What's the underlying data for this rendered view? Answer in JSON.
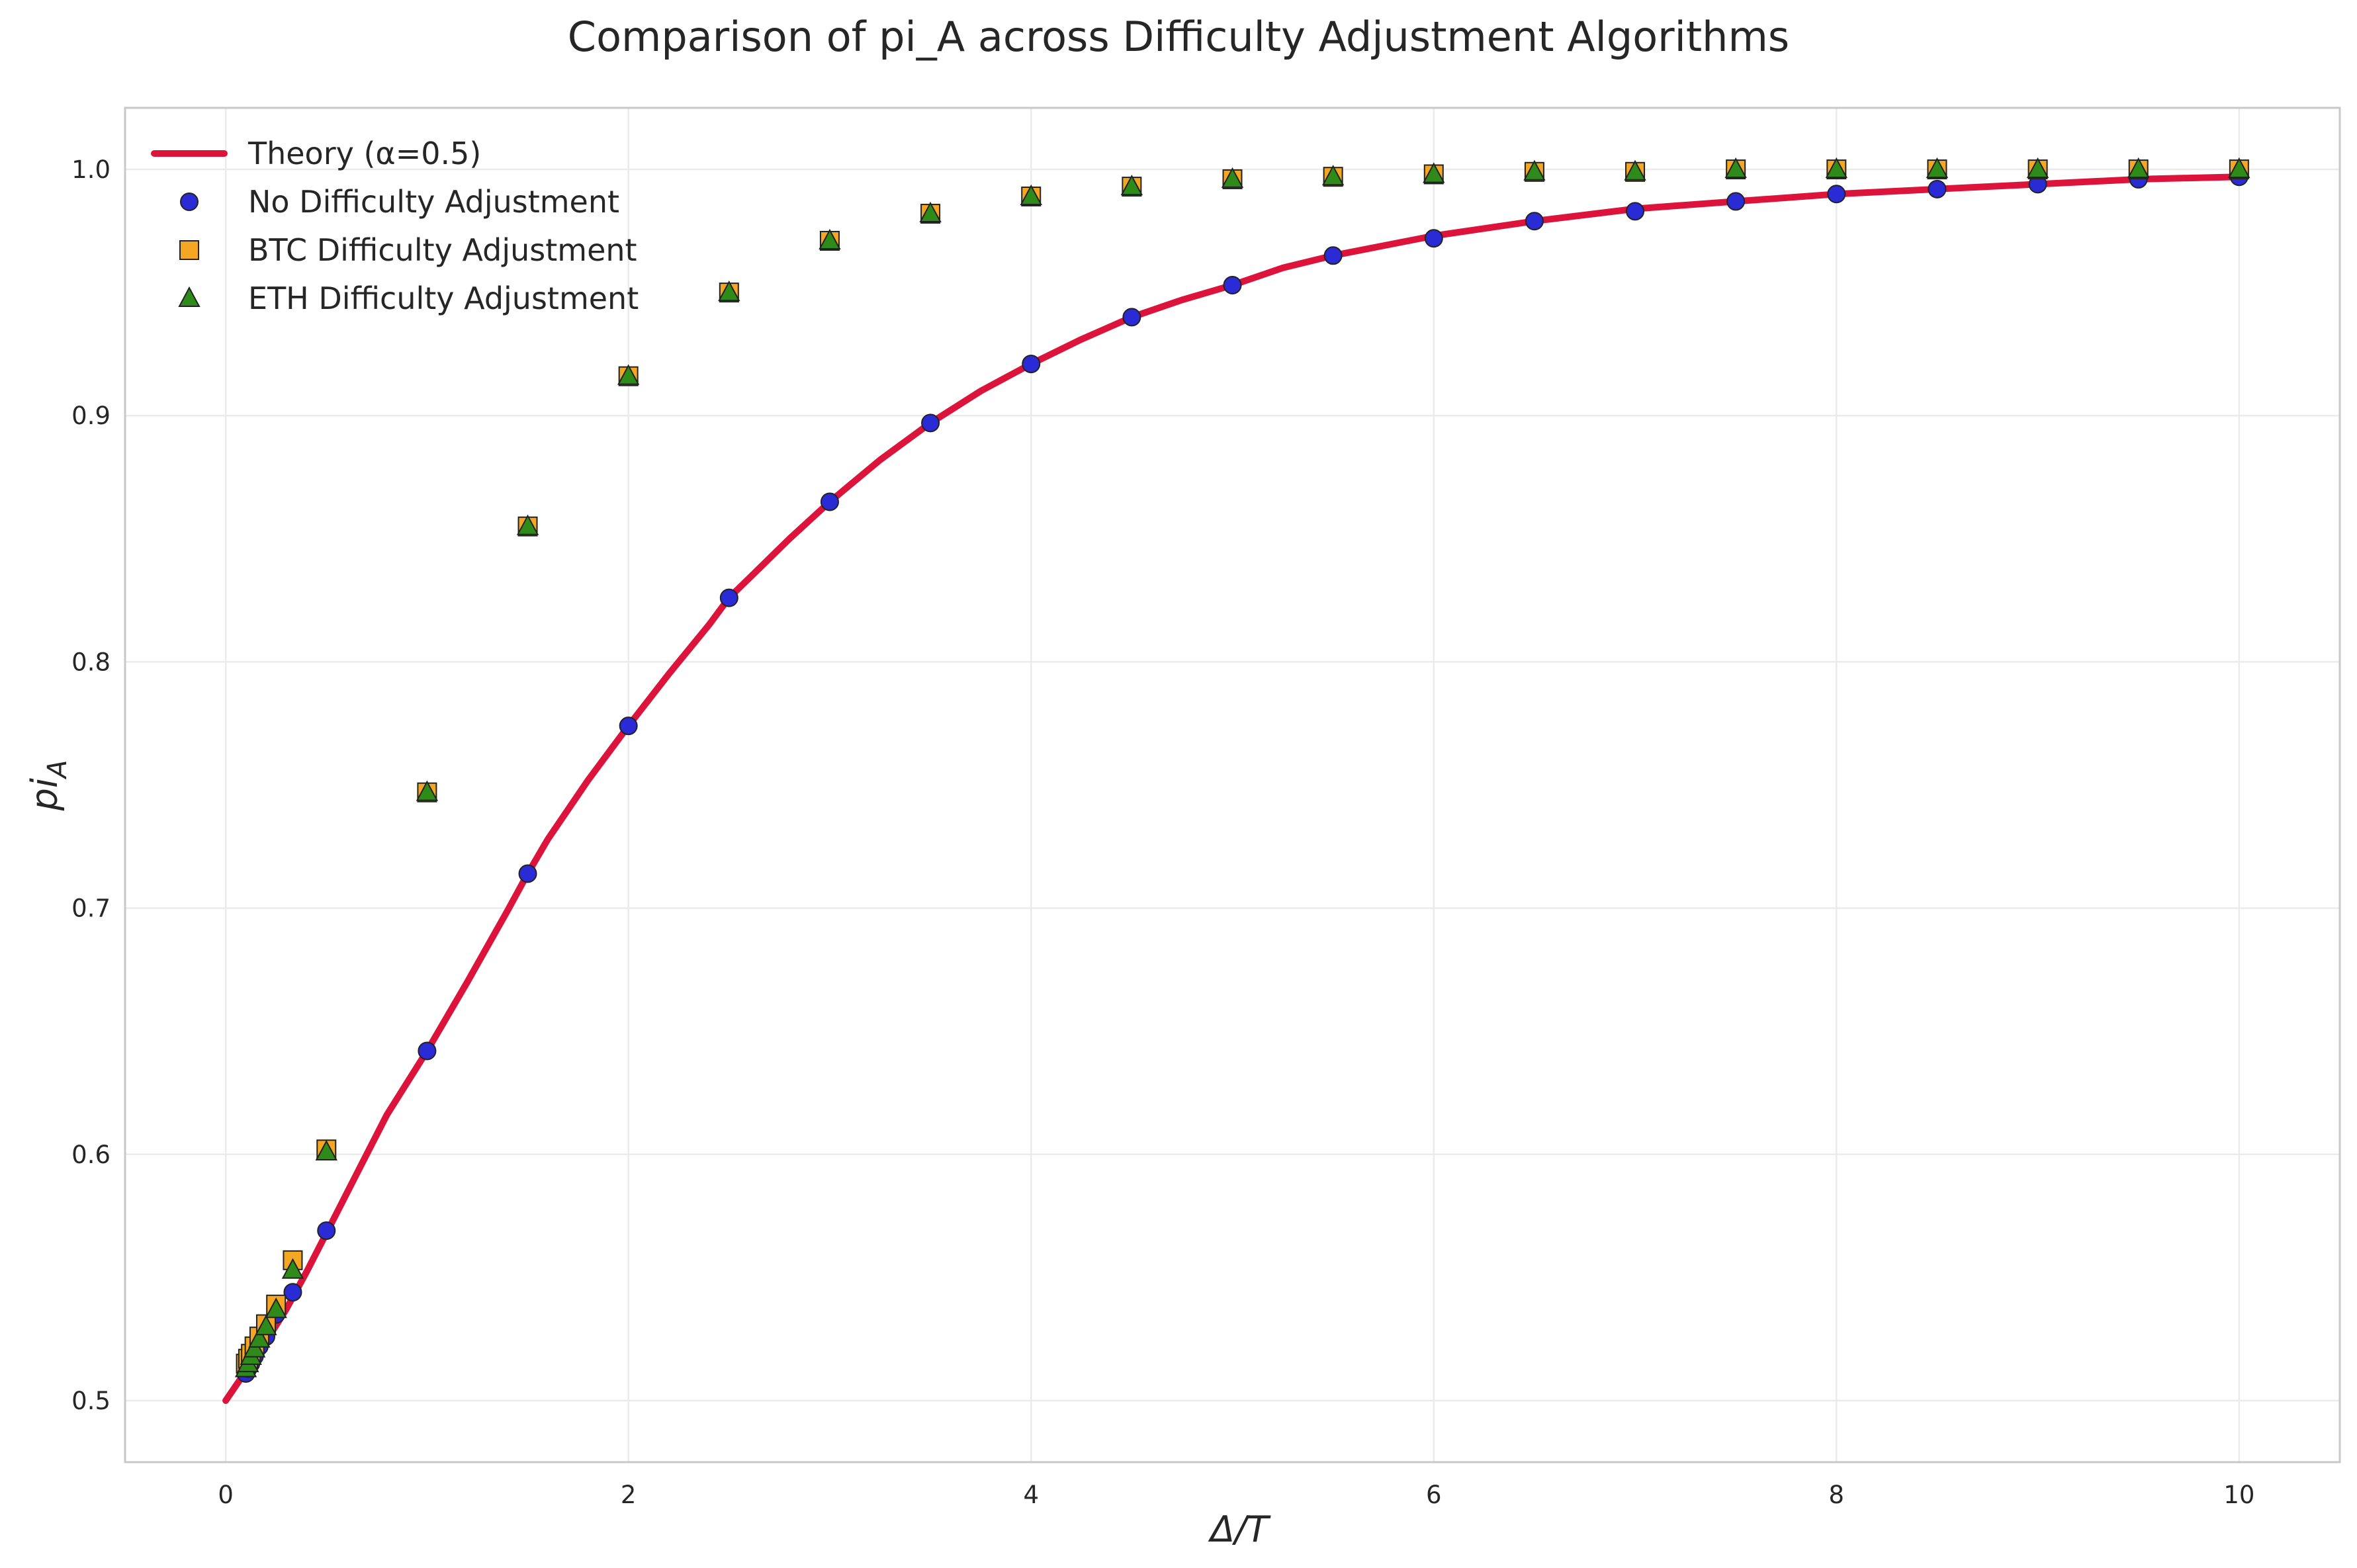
{
  "chart_data": {
    "type": "scatter",
    "title": "Comparison of pi_A across Difficulty Adjustment Algorithms",
    "xlabel": "Δ/T",
    "ylabel": "pi",
    "ylabel_sub": "A",
    "xlim": [
      -0.5,
      10.5
    ],
    "ylim": [
      0.475,
      1.025
    ],
    "xticks": [
      0,
      2,
      4,
      6,
      8,
      10
    ],
    "yticks": [
      0.5,
      0.6,
      0.7,
      0.8,
      0.9,
      1.0
    ],
    "xtick_labels": [
      "0",
      "2",
      "4",
      "6",
      "8",
      "10"
    ],
    "ytick_labels": [
      "0.5",
      "0.6",
      "0.7",
      "0.8",
      "0.9",
      "1.0"
    ],
    "grid": true,
    "legend_position": "top-left",
    "theory": {
      "name": "Theory (α=0.5)",
      "color": "#dc143c",
      "x": [
        0,
        0.1,
        0.2,
        0.3,
        0.4,
        0.5,
        0.6,
        0.7,
        0.8,
        0.9,
        1.0,
        1.2,
        1.4,
        1.5,
        1.6,
        1.8,
        2.0,
        2.2,
        2.4,
        2.5,
        2.6,
        2.8,
        3.0,
        3.25,
        3.5,
        3.75,
        4.0,
        4.25,
        4.5,
        4.75,
        5.0,
        5.25,
        5.5,
        5.75,
        6.0,
        6.5,
        7.0,
        7.5,
        8.0,
        8.5,
        9.0,
        9.5,
        10.0
      ],
      "y": [
        0.5,
        0.512,
        0.524,
        0.537,
        0.552,
        0.568,
        0.584,
        0.6,
        0.616,
        0.629,
        0.642,
        0.67,
        0.699,
        0.714,
        0.728,
        0.752,
        0.774,
        0.795,
        0.815,
        0.826,
        0.834,
        0.85,
        0.865,
        0.882,
        0.897,
        0.91,
        0.921,
        0.931,
        0.94,
        0.947,
        0.953,
        0.96,
        0.965,
        0.969,
        0.973,
        0.979,
        0.984,
        0.987,
        0.99,
        0.992,
        0.994,
        0.996,
        0.997
      ]
    },
    "series": [
      {
        "name": "No Difficulty Adjustment",
        "marker": "circle",
        "color": "#2b2bd6",
        "x": [
          0.1,
          0.111,
          0.125,
          0.143,
          0.167,
          0.2,
          0.25,
          0.333,
          0.5,
          1.0,
          1.5,
          2.0,
          2.5,
          3.0,
          3.5,
          4.0,
          4.5,
          5.0,
          5.5,
          6.0,
          6.5,
          7.0,
          7.5,
          8.0,
          8.5,
          9.0,
          9.5,
          10.0
        ],
        "y": [
          0.511,
          0.513,
          0.515,
          0.518,
          0.522,
          0.526,
          0.535,
          0.544,
          0.569,
          0.642,
          0.714,
          0.774,
          0.826,
          0.865,
          0.897,
          0.921,
          0.94,
          0.953,
          0.965,
          0.972,
          0.979,
          0.983,
          0.987,
          0.99,
          0.992,
          0.994,
          0.996,
          0.997
        ]
      },
      {
        "name": "BTC Difficulty Adjustment",
        "marker": "square",
        "color": "#f5a623",
        "x": [
          0.1,
          0.111,
          0.125,
          0.143,
          0.167,
          0.2,
          0.25,
          0.333,
          0.5,
          1.0,
          1.5,
          2.0,
          2.5,
          3.0,
          3.5,
          4.0,
          4.5,
          5.0,
          5.5,
          6.0,
          6.5,
          7.0,
          7.5,
          8.0,
          8.5,
          9.0,
          9.5,
          10.0
        ],
        "y": [
          0.515,
          0.517,
          0.519,
          0.522,
          0.526,
          0.531,
          0.539,
          0.557,
          0.602,
          0.747,
          0.855,
          0.916,
          0.95,
          0.971,
          0.982,
          0.989,
          0.993,
          0.996,
          0.997,
          0.998,
          0.999,
          0.999,
          1.0,
          1.0,
          1.0,
          1.0,
          1.0,
          1.0
        ]
      },
      {
        "name": "ETH Difficulty Adjustment",
        "marker": "triangle",
        "color": "#2e8b1a",
        "x": [
          0.1,
          0.111,
          0.125,
          0.143,
          0.167,
          0.2,
          0.25,
          0.333,
          0.5,
          1.0,
          1.5,
          2.0,
          2.5,
          3.0,
          3.5,
          4.0,
          4.5,
          5.0,
          5.5,
          6.0,
          6.5,
          7.0,
          7.5,
          8.0,
          8.5,
          9.0,
          9.5,
          10.0
        ],
        "y": [
          0.513,
          0.515,
          0.518,
          0.521,
          0.525,
          0.53,
          0.537,
          0.553,
          0.601,
          0.747,
          0.855,
          0.916,
          0.95,
          0.971,
          0.982,
          0.989,
          0.993,
          0.996,
          0.997,
          0.998,
          0.999,
          0.999,
          1.0,
          1.0,
          1.0,
          1.0,
          1.0,
          1.0
        ]
      }
    ]
  }
}
